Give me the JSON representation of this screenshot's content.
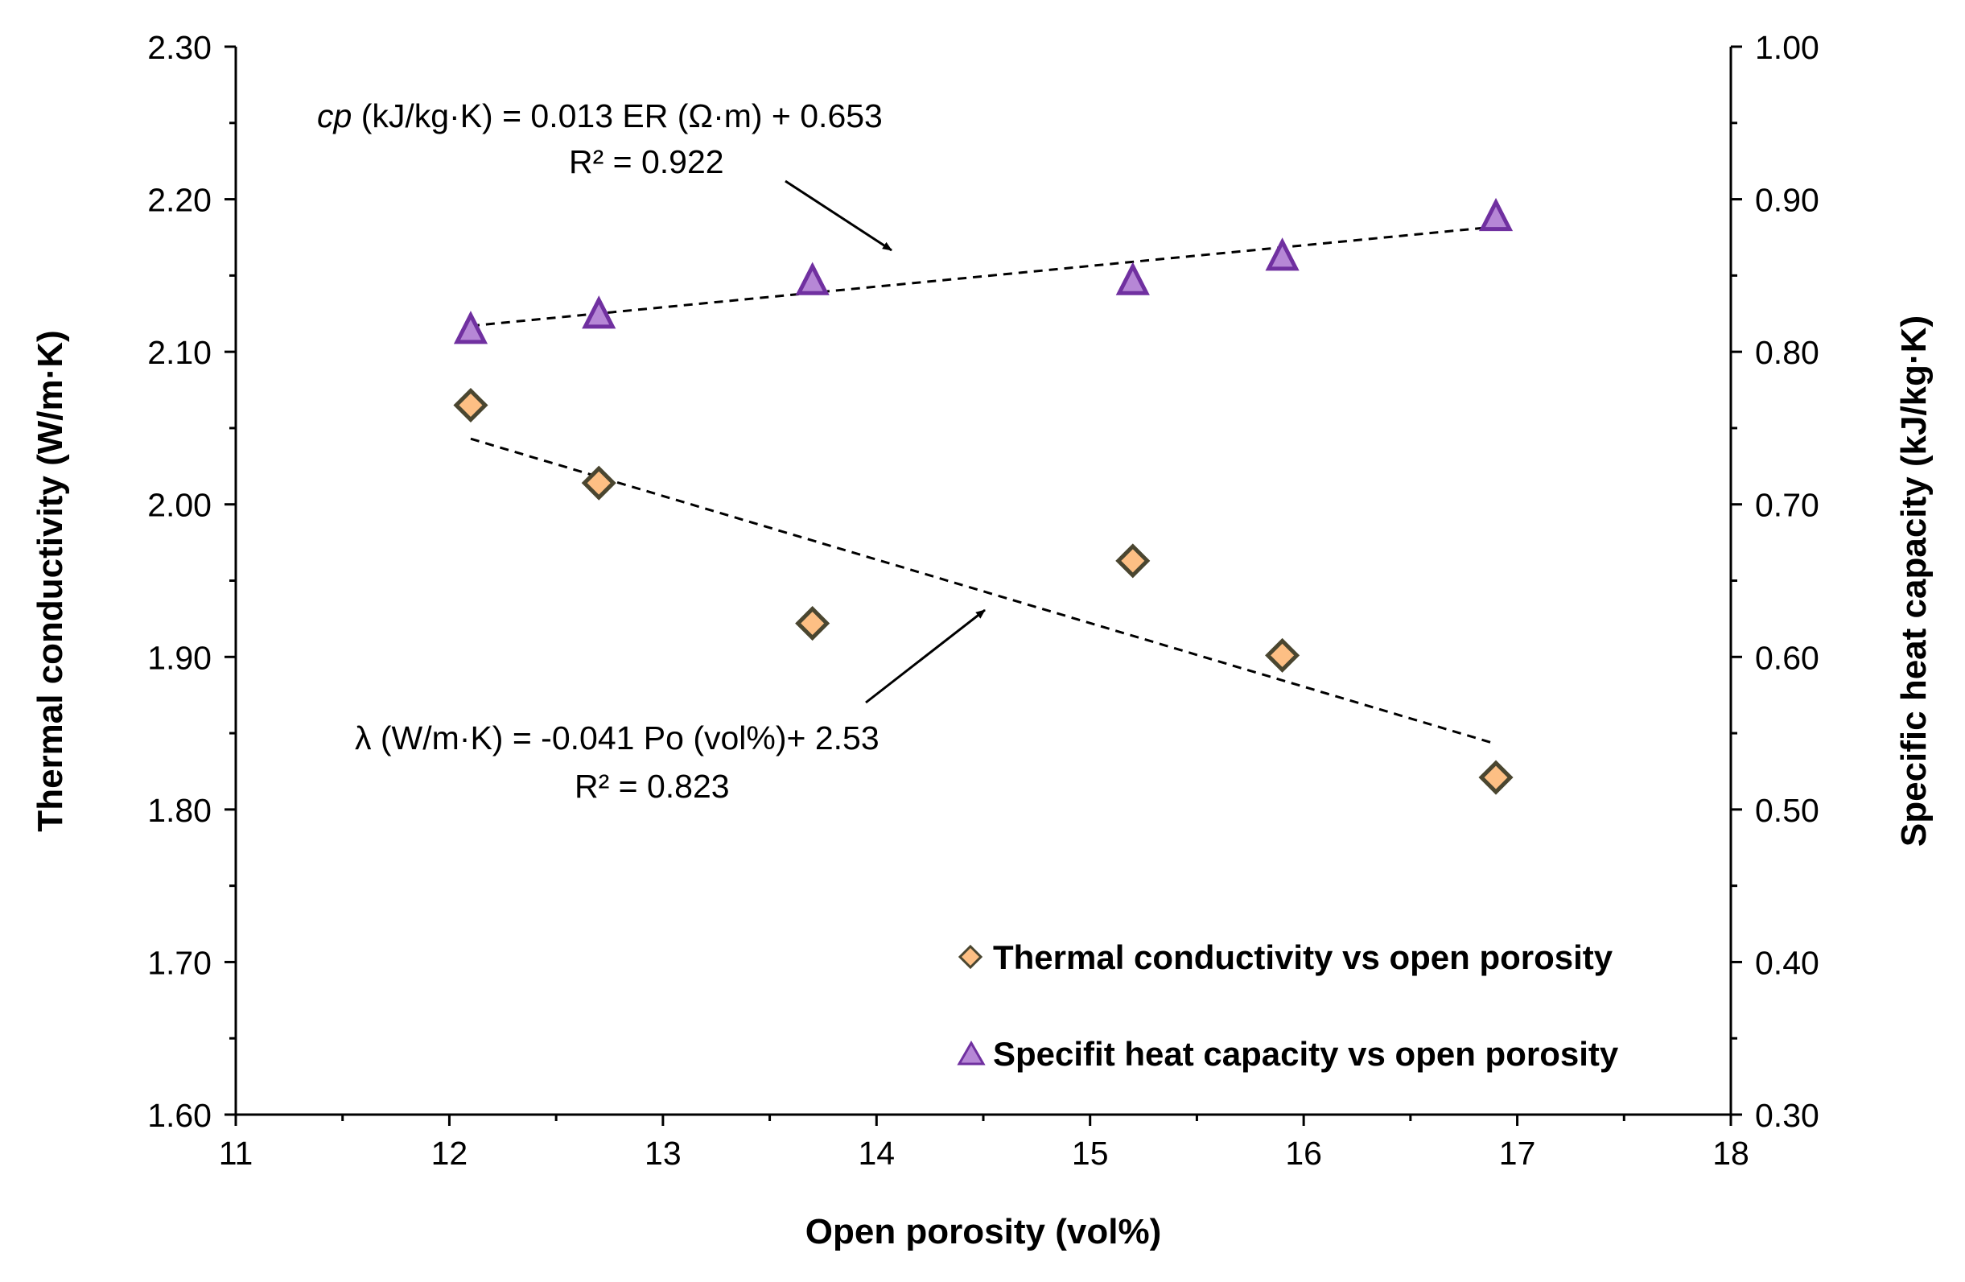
{
  "chart_data": {
    "type": "scatter",
    "xlabel": "Open porosity (vol%)",
    "ylabel_left": "Thermal conductivity (W/m·K)",
    "ylabel_right": "Specific heat capacity (kJ/kg·K)",
    "xlim": [
      11,
      18
    ],
    "ylim_left": [
      1.6,
      2.3
    ],
    "ylim_right": [
      0.3,
      1.0
    ],
    "x_ticks": [
      "11",
      "12",
      "13",
      "14",
      "15",
      "16",
      "17",
      "18"
    ],
    "y_left_ticks": [
      "1.60",
      "1.70",
      "1.80",
      "1.90",
      "2.00",
      "2.10",
      "2.20",
      "2.30"
    ],
    "y_right_ticks": [
      "0.30",
      "0.40",
      "0.50",
      "0.60",
      "0.70",
      "0.80",
      "0.90",
      "1.00"
    ],
    "grid": false,
    "legend_position": "bottom-right",
    "series": [
      {
        "name": "Thermal conductivity vs open porosity",
        "axis": "left",
        "marker": "diamond",
        "color": "#FDBF84",
        "edge_color": "#4A4630",
        "x": [
          12.1,
          12.7,
          13.7,
          15.2,
          15.9,
          16.9
        ],
        "y": [
          2.065,
          2.014,
          1.922,
          1.963,
          1.901,
          1.821
        ]
      },
      {
        "name": "Specifit heat capacity vs open porosity",
        "axis": "right",
        "marker": "triangle",
        "color": "#B687D6",
        "edge_color": "#7030A0",
        "x": [
          12.1,
          12.7,
          13.7,
          15.2,
          15.9,
          16.9
        ],
        "y": [
          0.814,
          0.824,
          0.846,
          0.846,
          0.862,
          0.888
        ]
      }
    ],
    "trendlines": [
      {
        "series": 0,
        "axis": "left",
        "x": [
          12.1,
          16.9
        ],
        "y": [
          2.043,
          1.843
        ]
      },
      {
        "series": 1,
        "axis": "right",
        "x": [
          12.1,
          16.9
        ],
        "y": [
          0.817,
          0.882
        ]
      }
    ],
    "annotations": {
      "cp_equation": {
        "italic": "cp",
        "rest": " (kJ/kg·K)  = 0.013 ER (Ω·m) + 0.653",
        "r2": "R² = 0.922"
      },
      "lambda_equation": {
        "text": "λ (W/m·K) = -0.041 Po (vol%)+ 2.53",
        "r2": "R² = 0.823"
      }
    }
  }
}
